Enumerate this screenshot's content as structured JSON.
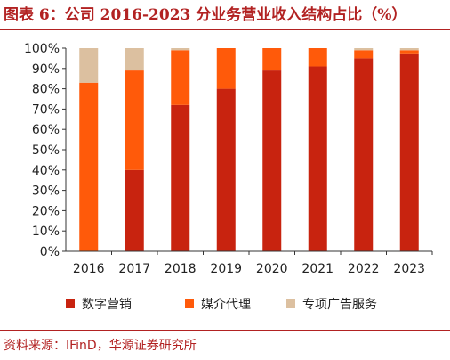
{
  "header": {
    "title": "图表 6：公司 2016-2023 分业务营业收入结构占比（%）"
  },
  "footer": {
    "source": "资料来源：IFinD，华源证券研究所"
  },
  "chart_data": {
    "type": "bar",
    "stacked": true,
    "categories": [
      "2016",
      "2017",
      "2018",
      "2019",
      "2020",
      "2021",
      "2022",
      "2023"
    ],
    "series": [
      {
        "name": "数字营销",
        "color": "#c8230f",
        "values": [
          0,
          40,
          72,
          80,
          89,
          91,
          95,
          97
        ]
      },
      {
        "name": "媒介代理",
        "color": "#ff5a0a",
        "values": [
          83,
          49,
          27,
          20,
          11,
          9,
          4,
          2
        ]
      },
      {
        "name": "专项广告服务",
        "color": "#dcc0a0",
        "values": [
          17,
          11,
          1,
          0,
          0,
          0,
          1,
          1
        ]
      }
    ],
    "yticks": [
      "0%",
      "10%",
      "20%",
      "30%",
      "40%",
      "50%",
      "60%",
      "70%",
      "80%",
      "90%",
      "100%"
    ],
    "ylim": [
      0,
      100
    ],
    "grid": false,
    "legend_position": "bottom"
  }
}
